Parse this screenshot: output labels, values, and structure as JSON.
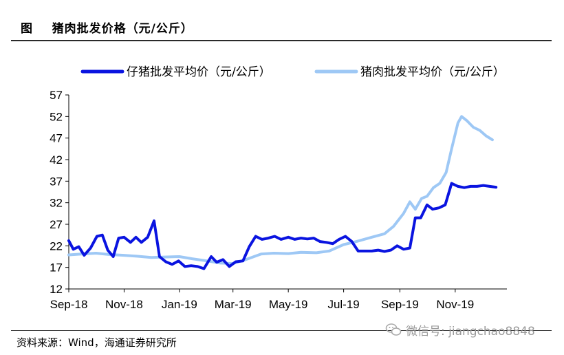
{
  "header": {
    "title": "图    猪肉批发价格（元/公斤）"
  },
  "footer": {
    "source": "资料来源：Wind，海通证券研究所"
  },
  "watermark": {
    "text": "微信号: jiangchao8848",
    "icon": "wechat-icon"
  },
  "colors": {
    "piglet": "#0a14e0",
    "pork": "#9ec8f5",
    "axis": "#000000"
  },
  "chart_data": {
    "type": "line",
    "title": "",
    "xlabel": "",
    "ylabel": "",
    "ylim": [
      12,
      57
    ],
    "yticks": [
      12,
      17,
      22,
      27,
      32,
      37,
      42,
      47,
      52,
      57
    ],
    "xlim": [
      "2018-09-01",
      "2019-12-28"
    ],
    "xticks": [
      "Sep-18",
      "Nov-18",
      "Jan-19",
      "Mar-19",
      "May-19",
      "Jul-19",
      "Sep-19",
      "Nov-19"
    ],
    "xtick_dates": [
      "2018-09-01",
      "2018-11-01",
      "2019-01-01",
      "2019-03-01",
      "2019-05-01",
      "2019-07-01",
      "2019-09-01",
      "2019-11-01"
    ],
    "grid": false,
    "legend": "top",
    "series": [
      {
        "name": "仔猪批发平均价（元/公斤）",
        "points": [
          [
            "2018-09-01",
            23.2
          ],
          [
            "2018-09-06",
            21.2
          ],
          [
            "2018-09-12",
            21.8
          ],
          [
            "2018-09-18",
            19.8
          ],
          [
            "2018-09-25",
            21.5
          ],
          [
            "2018-10-02",
            24.2
          ],
          [
            "2018-10-08",
            24.5
          ],
          [
            "2018-10-14",
            21.0
          ],
          [
            "2018-10-20",
            19.5
          ],
          [
            "2018-10-26",
            23.8
          ],
          [
            "2018-11-01",
            24.0
          ],
          [
            "2018-11-08",
            22.8
          ],
          [
            "2018-11-14",
            24.0
          ],
          [
            "2018-11-20",
            22.8
          ],
          [
            "2018-11-27",
            24.0
          ],
          [
            "2018-12-04",
            27.8
          ],
          [
            "2018-12-10",
            19.5
          ],
          [
            "2018-12-17",
            18.3
          ],
          [
            "2018-12-24",
            17.7
          ],
          [
            "2018-12-31",
            18.5
          ],
          [
            "2019-01-07",
            17.2
          ],
          [
            "2019-01-14",
            17.4
          ],
          [
            "2019-01-21",
            17.2
          ],
          [
            "2019-01-28",
            16.7
          ],
          [
            "2019-02-05",
            19.5
          ],
          [
            "2019-02-11",
            18.2
          ],
          [
            "2019-02-18",
            18.8
          ],
          [
            "2019-02-25",
            17.2
          ],
          [
            "2019-03-04",
            18.3
          ],
          [
            "2019-03-12",
            18.5
          ],
          [
            "2019-03-19",
            21.8
          ],
          [
            "2019-03-26",
            24.2
          ],
          [
            "2019-04-02",
            23.5
          ],
          [
            "2019-04-09",
            23.8
          ],
          [
            "2019-04-16",
            24.2
          ],
          [
            "2019-04-23",
            23.5
          ],
          [
            "2019-05-01",
            24.0
          ],
          [
            "2019-05-08",
            23.5
          ],
          [
            "2019-05-15",
            23.8
          ],
          [
            "2019-05-22",
            23.6
          ],
          [
            "2019-05-29",
            23.8
          ],
          [
            "2019-06-05",
            23.0
          ],
          [
            "2019-06-12",
            22.8
          ],
          [
            "2019-06-19",
            22.5
          ],
          [
            "2019-06-26",
            23.5
          ],
          [
            "2019-07-03",
            24.2
          ],
          [
            "2019-07-10",
            23.0
          ],
          [
            "2019-07-17",
            20.8
          ],
          [
            "2019-07-24",
            20.8
          ],
          [
            "2019-08-01",
            20.8
          ],
          [
            "2019-08-08",
            21.0
          ],
          [
            "2019-08-15",
            20.7
          ],
          [
            "2019-08-22",
            21.0
          ],
          [
            "2019-08-29",
            22.0
          ],
          [
            "2019-09-05",
            21.2
          ],
          [
            "2019-09-12",
            21.5
          ],
          [
            "2019-09-18",
            28.5
          ],
          [
            "2019-09-24",
            28.5
          ],
          [
            "2019-10-01",
            31.5
          ],
          [
            "2019-10-07",
            30.5
          ],
          [
            "2019-10-14",
            30.8
          ],
          [
            "2019-10-21",
            31.5
          ],
          [
            "2019-10-28",
            36.5
          ],
          [
            "2019-11-04",
            35.8
          ],
          [
            "2019-11-11",
            35.5
          ],
          [
            "2019-11-18",
            35.8
          ],
          [
            "2019-11-25",
            35.8
          ],
          [
            "2019-12-02",
            36.0
          ],
          [
            "2019-12-09",
            35.8
          ],
          [
            "2019-12-16",
            35.6
          ]
        ]
      },
      {
        "name": "猪肉批发平均价（元/公斤）",
        "points": [
          [
            "2018-09-01",
            19.9
          ],
          [
            "2018-09-15",
            20.1
          ],
          [
            "2018-10-01",
            20.3
          ],
          [
            "2018-10-15",
            20.0
          ],
          [
            "2018-11-01",
            19.8
          ],
          [
            "2018-11-15",
            19.6
          ],
          [
            "2018-12-01",
            19.3
          ],
          [
            "2018-12-15",
            19.4
          ],
          [
            "2019-01-01",
            19.5
          ],
          [
            "2019-01-15",
            19.0
          ],
          [
            "2019-02-01",
            18.5
          ],
          [
            "2019-02-15",
            18.0
          ],
          [
            "2019-03-01",
            17.9
          ],
          [
            "2019-03-15",
            18.8
          ],
          [
            "2019-04-01",
            20.1
          ],
          [
            "2019-04-15",
            20.3
          ],
          [
            "2019-05-01",
            20.2
          ],
          [
            "2019-05-15",
            20.5
          ],
          [
            "2019-06-01",
            20.4
          ],
          [
            "2019-06-15",
            20.8
          ],
          [
            "2019-07-01",
            22.3
          ],
          [
            "2019-07-15",
            23.0
          ],
          [
            "2019-08-01",
            24.0
          ],
          [
            "2019-08-15",
            24.8
          ],
          [
            "2019-08-25",
            26.5
          ],
          [
            "2019-09-05",
            29.5
          ],
          [
            "2019-09-12",
            32.2
          ],
          [
            "2019-09-18",
            30.5
          ],
          [
            "2019-09-25",
            33.0
          ],
          [
            "2019-10-01",
            33.5
          ],
          [
            "2019-10-08",
            35.5
          ],
          [
            "2019-10-15",
            36.5
          ],
          [
            "2019-10-22",
            39.0
          ],
          [
            "2019-10-28",
            44.5
          ],
          [
            "2019-11-04",
            50.5
          ],
          [
            "2019-11-08",
            52.0
          ],
          [
            "2019-11-14",
            51.0
          ],
          [
            "2019-11-21",
            49.5
          ],
          [
            "2019-11-28",
            48.8
          ],
          [
            "2019-12-05",
            47.5
          ],
          [
            "2019-12-12",
            46.6
          ]
        ]
      }
    ]
  }
}
